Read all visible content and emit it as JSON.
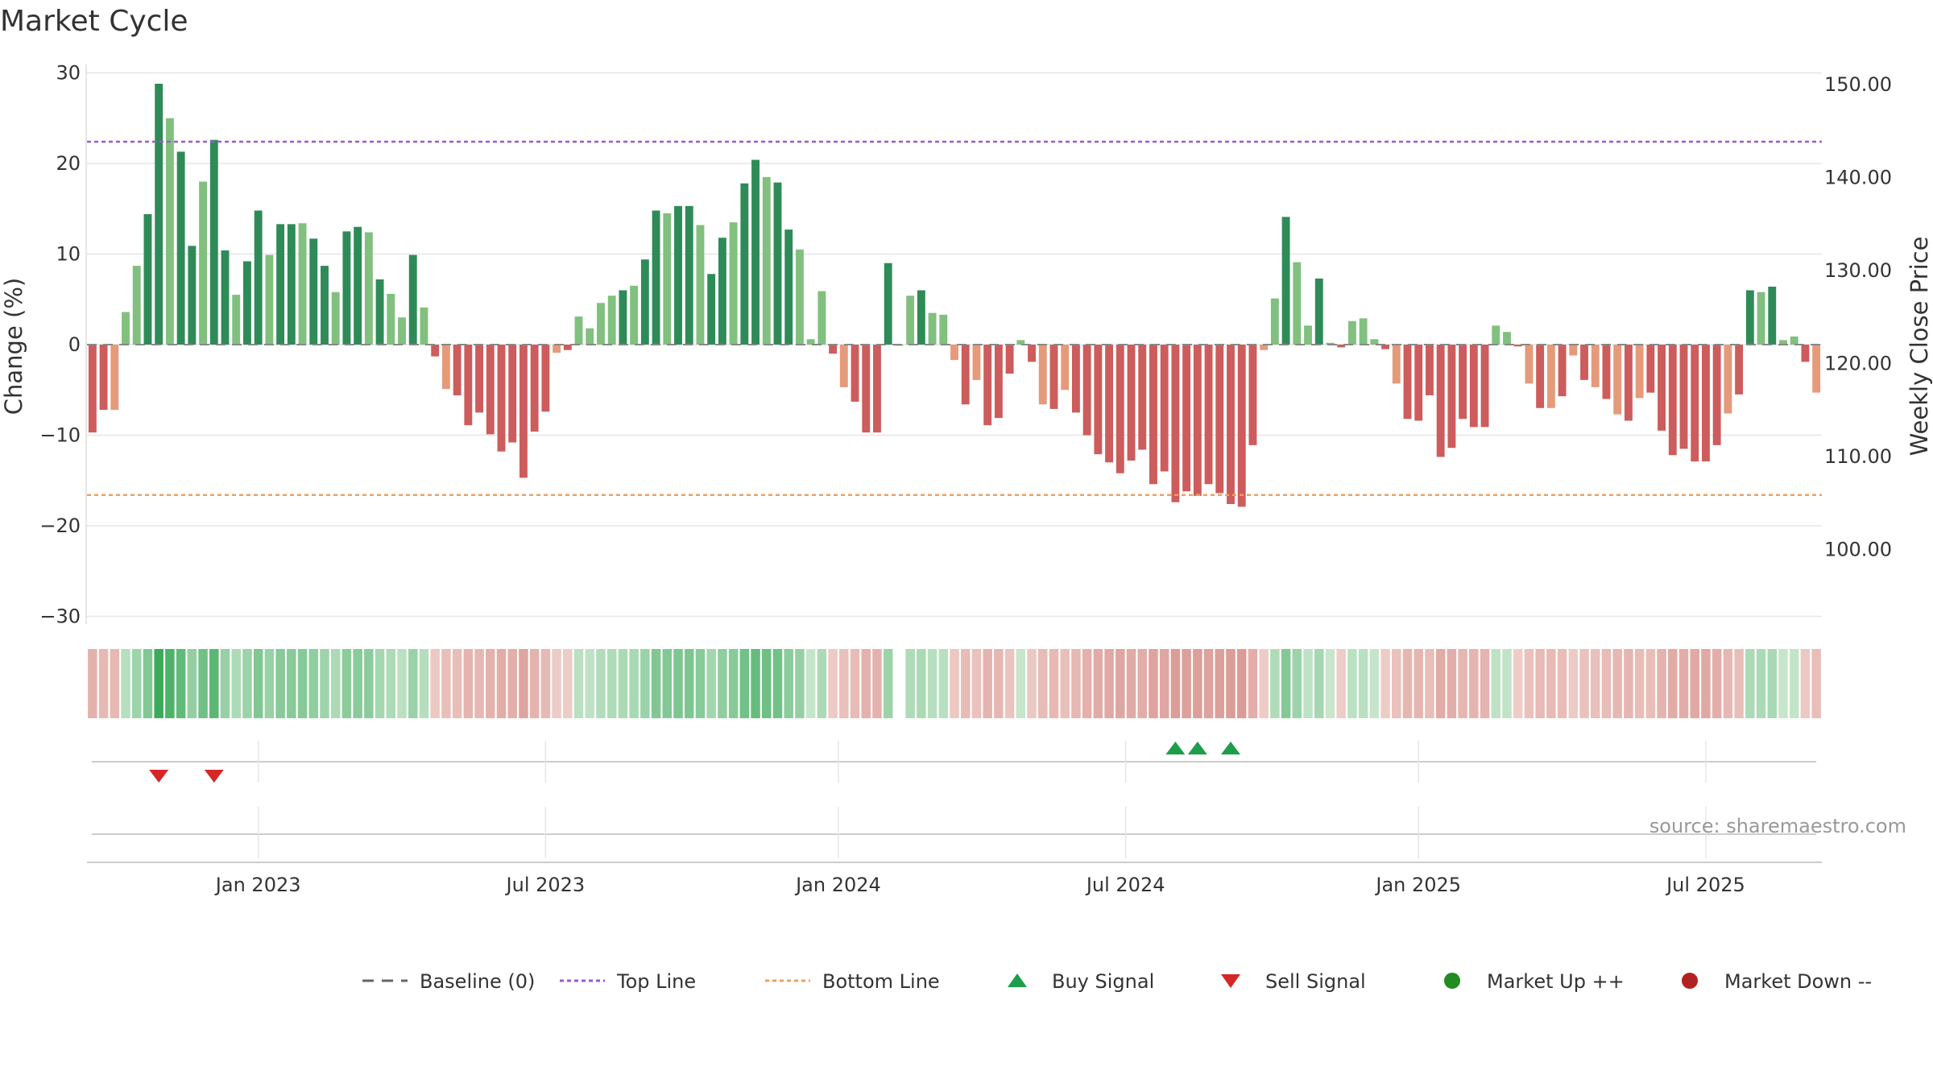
{
  "chart_data": {
    "type": "bar",
    "title": "Market Cycle",
    "ylabel": "Change (%)",
    "y2label": "Weekly Close Price",
    "ylim": [
      -30,
      30
    ],
    "y2lim": [
      100,
      150
    ],
    "y_ticks": [
      30,
      20,
      10,
      0,
      -10,
      -20,
      -30
    ],
    "y2_ticks": [
      "150.00",
      "140.00",
      "130.00",
      "120.00",
      "110.00",
      "100.00"
    ],
    "x_tick_labels": [
      "Jan 2023",
      "Jul 2023",
      "Jan 2024",
      "Jul 2024",
      "Jan 2025",
      "Jul 2025"
    ],
    "x_tick_positions": [
      15.5,
      41.5,
      68,
      94,
      120.5,
      146.5
    ],
    "top_line": 22.4,
    "bottom_line": -16.6,
    "values": [
      -9.7,
      -7.2,
      -7.2,
      3.6,
      8.7,
      14.4,
      28.8,
      25.0,
      21.3,
      10.9,
      18.0,
      22.6,
      10.4,
      5.5,
      9.2,
      14.8,
      9.9,
      13.3,
      13.3,
      13.4,
      11.7,
      8.7,
      5.8,
      12.5,
      13.0,
      12.4,
      7.2,
      5.6,
      3.0,
      9.9,
      4.1,
      -1.3,
      -4.9,
      -5.6,
      -8.9,
      -7.5,
      -9.9,
      -11.8,
      -10.8,
      -14.7,
      -9.6,
      -7.4,
      -0.9,
      -0.6,
      3.1,
      1.8,
      4.6,
      5.4,
      6.0,
      6.5,
      9.4,
      14.8,
      14.5,
      15.3,
      15.3,
      13.2,
      7.8,
      11.8,
      13.5,
      17.8,
      20.4,
      18.5,
      17.9,
      12.7,
      10.5,
      0.6,
      5.9,
      -1.0,
      -4.7,
      -6.3,
      -9.7,
      -9.7,
      9.0,
      0.0,
      5.4,
      6.0,
      3.5,
      3.3,
      -1.7,
      -6.6,
      -3.9,
      -8.9,
      -8.1,
      -3.2,
      0.5,
      -1.9,
      -6.6,
      -7.1,
      -5.0,
      -7.5,
      -10.0,
      -12.1,
      -13.0,
      -14.2,
      -12.8,
      -11.6,
      -15.4,
      -14.0,
      -17.4,
      -16.2,
      -16.7,
      -15.4,
      -16.4,
      -17.6,
      -17.9,
      -11.1,
      -0.6,
      5.1,
      14.1,
      9.1,
      2.1,
      7.3,
      0.2,
      -0.3,
      2.6,
      2.9,
      0.6,
      -0.5,
      -4.3,
      -8.2,
      -8.4,
      -5.6,
      -12.4,
      -11.4,
      -8.2,
      -9.1,
      -9.1,
      2.1,
      1.4,
      -0.2,
      -4.3,
      -7.0,
      -7.0,
      -5.7,
      -1.2,
      -3.9,
      -4.7,
      -6.0,
      -7.7,
      -8.4,
      -5.9,
      -5.3,
      -9.5,
      -12.2,
      -11.5,
      -12.9,
      -12.9,
      -11.1,
      -7.6,
      -5.5,
      6.0,
      5.8,
      6.4,
      0.5,
      0.9,
      -1.9,
      -5.3
    ],
    "buy_signals": [
      98,
      100,
      103
    ],
    "sell_signals": [
      6,
      11
    ],
    "source": "source: sharemaestro.com",
    "legend": [
      {
        "label": "Baseline (0)",
        "symbol": "dash",
        "color": "#666666"
      },
      {
        "label": "Top Line",
        "symbol": "dotted",
        "color": "#9b59d0"
      },
      {
        "label": "Bottom Line",
        "symbol": "dotted",
        "color": "#f0a060"
      },
      {
        "label": "Buy Signal",
        "symbol": "triangle-up",
        "color": "#1e9e4a"
      },
      {
        "label": "Sell Signal",
        "symbol": "triangle-down",
        "color": "#d62728"
      },
      {
        "label": "Market Up ++",
        "symbol": "circle",
        "color": "#228b22"
      },
      {
        "label": "Market Down --",
        "symbol": "circle",
        "color": "#b22222"
      }
    ],
    "colors": {
      "up_strong": "#2e8b57",
      "up_weak": "#81c07e",
      "down_strong": "#cd5c5c",
      "down_weak": "#e59a7a",
      "top_line": "#9b59d0",
      "bottom_line": "#f0a060",
      "grid": "#e6e6e6",
      "axis": "#cccccc"
    }
  }
}
